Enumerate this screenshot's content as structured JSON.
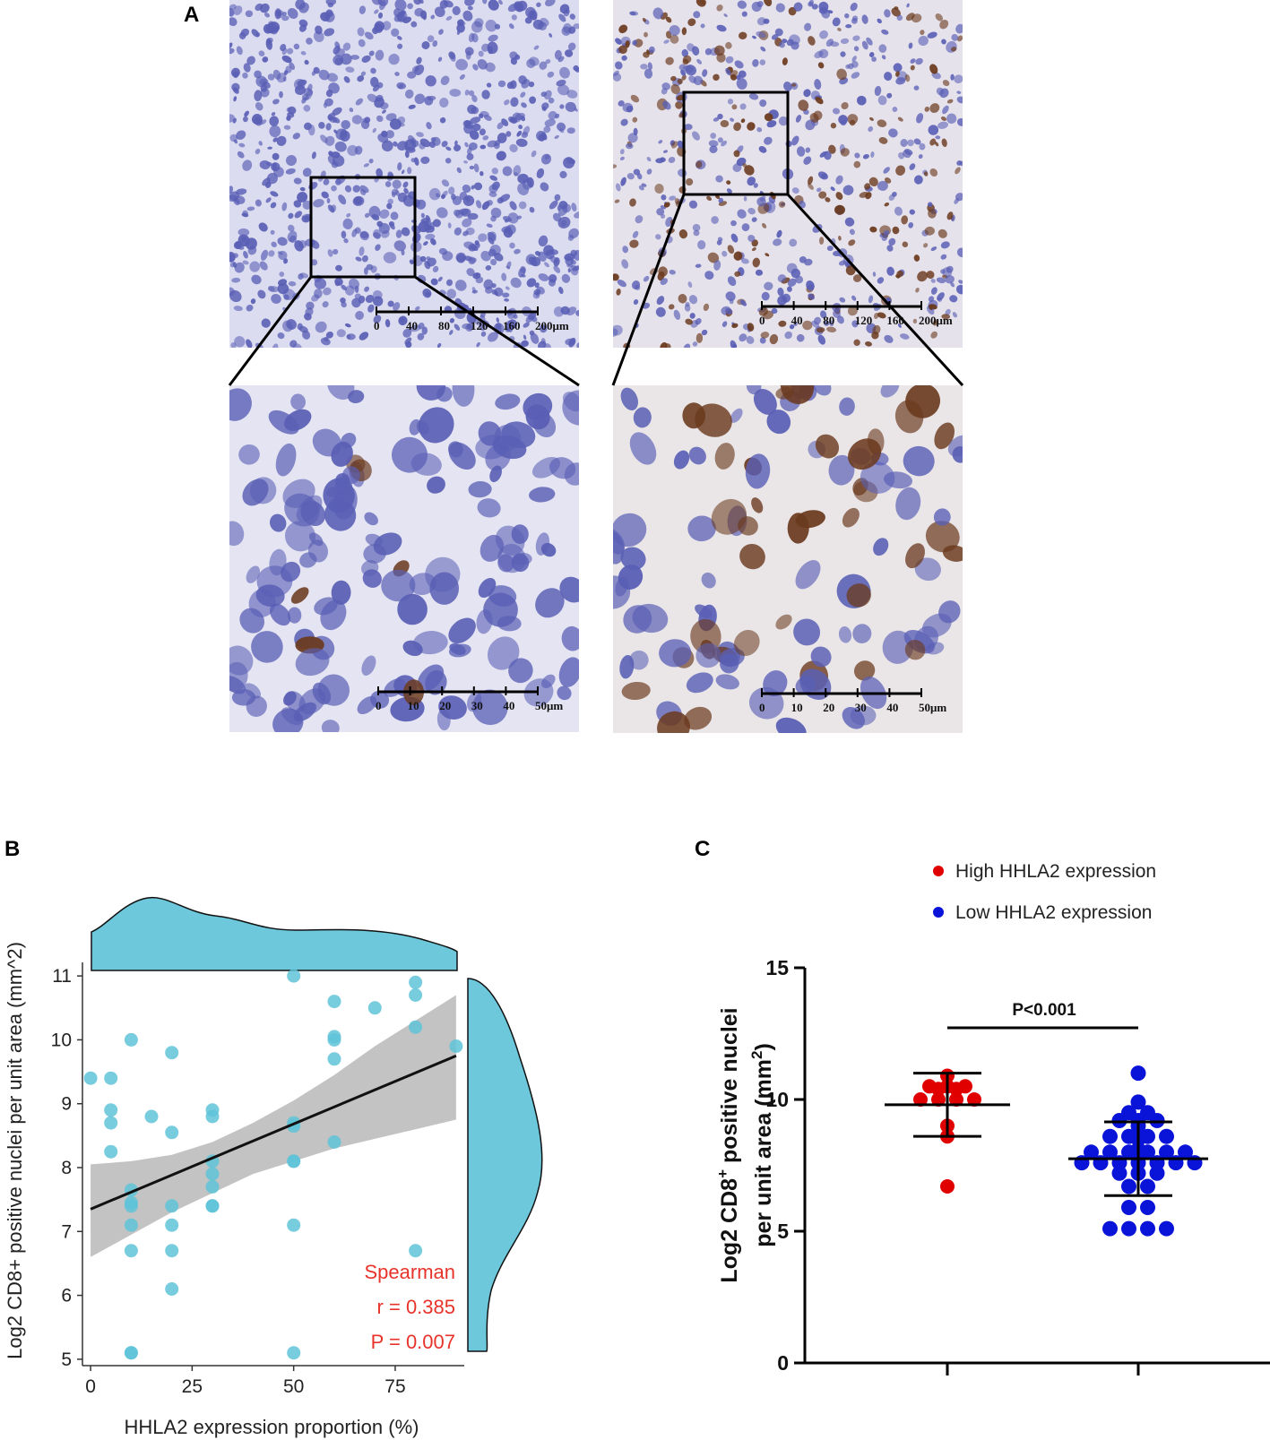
{
  "panels": {
    "a": {
      "letter": "A"
    },
    "b": {
      "letter": "B"
    },
    "c": {
      "letter": "C"
    }
  },
  "micrographs": {
    "low_scale_ticks": [
      "0",
      "40",
      "80",
      "120",
      "160",
      "200μm"
    ],
    "high_scale_ticks": [
      "0",
      "10",
      "20",
      "30",
      "40",
      "50μm"
    ],
    "colors": {
      "hematoxylin": "#5a5fb5",
      "background": "#dcdcf0",
      "dab_stain": "#6b3a1e"
    }
  },
  "chart_data": [
    {
      "type": "scatter",
      "xlabel": "HHLA2 expression proportion (%)",
      "ylabel": "Log2 CD8+ positive nuclei per unit area (mm^2)",
      "xlim": [
        -2,
        92
      ],
      "ylim": [
        4.9,
        11.1
      ],
      "xticks": [
        0,
        25,
        50,
        75
      ],
      "yticks": [
        5,
        6,
        7,
        8,
        9,
        10,
        11
      ],
      "points": [
        [
          0,
          9.4
        ],
        [
          5,
          9.4
        ],
        [
          5,
          8.9
        ],
        [
          5,
          8.7
        ],
        [
          5,
          8.25
        ],
        [
          10,
          10.0
        ],
        [
          10,
          7.65
        ],
        [
          10,
          7.45
        ],
        [
          10,
          7.4
        ],
        [
          10,
          7.1
        ],
        [
          10,
          6.7
        ],
        [
          10,
          5.1
        ],
        [
          10,
          5.1
        ],
        [
          15,
          8.8
        ],
        [
          20,
          9.8
        ],
        [
          20,
          8.55
        ],
        [
          20,
          7.4
        ],
        [
          20,
          7.1
        ],
        [
          20,
          6.7
        ],
        [
          20,
          6.1
        ],
        [
          30,
          8.9
        ],
        [
          30,
          8.8
        ],
        [
          30,
          8.1
        ],
        [
          30,
          7.9
        ],
        [
          30,
          7.7
        ],
        [
          30,
          7.4
        ],
        [
          30,
          7.4
        ],
        [
          50,
          11.0
        ],
        [
          50,
          8.7
        ],
        [
          50,
          8.65
        ],
        [
          50,
          8.1
        ],
        [
          50,
          8.1
        ],
        [
          50,
          7.1
        ],
        [
          50,
          5.1
        ],
        [
          60,
          10.6
        ],
        [
          60,
          10.05
        ],
        [
          60,
          10.0
        ],
        [
          60,
          9.7
        ],
        [
          60,
          8.4
        ],
        [
          70,
          10.5
        ],
        [
          80,
          10.9
        ],
        [
          80,
          10.7
        ],
        [
          80,
          10.2
        ],
        [
          80,
          6.7
        ],
        [
          90,
          9.9
        ]
      ],
      "fit_line": {
        "x": [
          0,
          90
        ],
        "y": [
          7.35,
          9.75
        ]
      },
      "confidence_band": {
        "x": [
          0,
          10,
          20,
          30,
          40,
          50,
          60,
          70,
          80,
          90
        ],
        "upper": [
          8.05,
          8.1,
          8.2,
          8.4,
          8.7,
          9.05,
          9.45,
          9.9,
          10.3,
          10.7
        ],
        "lower": [
          6.6,
          6.95,
          7.3,
          7.6,
          7.9,
          8.1,
          8.3,
          8.45,
          8.6,
          8.75
        ]
      },
      "stats": {
        "method": "Spearman",
        "r": "r = 0.385",
        "p": "P = 0.007"
      },
      "colors": {
        "points": "#5fc3d8",
        "band": "#bdbdbd",
        "line": "#111111",
        "marginal": "#6cc8da",
        "stats": "#e8332a"
      }
    },
    {
      "type": "scatter",
      "ylabel": "Log2 CD8+ positive nuclei per unit area (mm2)",
      "ylim": [
        0,
        15
      ],
      "yticks": [
        0,
        5,
        10,
        15
      ],
      "significance": "P<0.001",
      "series": [
        {
          "name": "High HHLA2 expression",
          "color": "#e00000",
          "mean": 9.8,
          "sd_upper": 11.0,
          "sd_lower": 8.6,
          "values": [
            10.5,
            10.5,
            10.9,
            10.5,
            10.4,
            10.4,
            10.0,
            10.0,
            10.0,
            10.0,
            9.0,
            8.6,
            6.7
          ]
        },
        {
          "name": "Low HHLA2 expression",
          "color": "#0a14d8",
          "mean": 7.75,
          "sd_upper": 9.15,
          "sd_lower": 6.35,
          "values": [
            11.0,
            9.9,
            9.5,
            9.5,
            9.2,
            9.2,
            9.2,
            9.0,
            8.6,
            8.6,
            8.6,
            8.6,
            8.5,
            8.1,
            8.0,
            8.0,
            8.0,
            8.0,
            8.0,
            8.0,
            7.6,
            7.6,
            7.6,
            7.6,
            7.6,
            7.6,
            7.6,
            7.2,
            7.2,
            7.2,
            6.7,
            6.7,
            5.9,
            5.9,
            5.1,
            5.1,
            5.1,
            5.1
          ]
        }
      ]
    }
  ]
}
